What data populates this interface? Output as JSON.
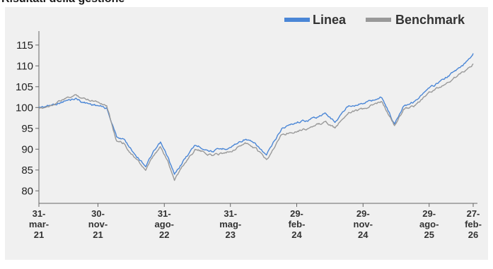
{
  "page": {
    "title": "Risultati della gestione"
  },
  "chart_data": {
    "type": "line",
    "title": "",
    "xlabel": "",
    "ylabel": "",
    "x_range": [
      "2021-03-31",
      "2026-02-27"
    ],
    "ylim": [
      77,
      117
    ],
    "yticks": [
      80,
      85,
      90,
      95,
      100,
      105,
      110,
      115
    ],
    "ytick_labels": [
      "80",
      "85",
      "90",
      "95",
      "100",
      "105",
      "110",
      "115"
    ],
    "xticks": [
      "2021-03-31",
      "2021-11-30",
      "2022-08-31",
      "2023-05-31",
      "2024-02-29",
      "2024-11-29",
      "2025-08-29",
      "2026-02-27"
    ],
    "xtick_labels": [
      [
        "31-",
        "mar-",
        "21"
      ],
      [
        "30-",
        "nov-",
        "21"
      ],
      [
        "31-",
        "ago-",
        "22"
      ],
      [
        "31-",
        "mag-",
        "23"
      ],
      [
        "29-",
        "feb-",
        "24"
      ],
      [
        "29-",
        "nov-",
        "24"
      ],
      [
        "29-",
        "ago-",
        "25"
      ],
      [
        "27-",
        "feb-",
        "26"
      ]
    ],
    "grid": false,
    "legend_position": "top-right",
    "series": [
      {
        "name": "Linea",
        "color": "#4a86d6",
        "points": [
          [
            "2021-03-31",
            100.0
          ],
          [
            "2021-05-15",
            100.5
          ],
          [
            "2021-07-15",
            101.5
          ],
          [
            "2021-09-01",
            102.2
          ],
          [
            "2021-10-01",
            101.2
          ],
          [
            "2021-11-30",
            100.5
          ],
          [
            "2022-01-05",
            99.8
          ],
          [
            "2022-02-15",
            93.0
          ],
          [
            "2022-03-15",
            92.5
          ],
          [
            "2022-04-30",
            89.0
          ],
          [
            "2022-06-15",
            86.0
          ],
          [
            "2022-07-15",
            89.0
          ],
          [
            "2022-08-15",
            91.5
          ],
          [
            "2022-09-15",
            88.0
          ],
          [
            "2022-10-12",
            83.8
          ],
          [
            "2022-11-15",
            87.0
          ],
          [
            "2023-01-05",
            91.0
          ],
          [
            "2023-03-15",
            89.5
          ],
          [
            "2023-05-31",
            90.5
          ],
          [
            "2023-07-31",
            92.5
          ],
          [
            "2023-09-15",
            91.0
          ],
          [
            "2023-10-27",
            88.5
          ],
          [
            "2023-12-29",
            95.0
          ],
          [
            "2024-02-29",
            96.5
          ],
          [
            "2024-04-15",
            97.0
          ],
          [
            "2024-06-28",
            98.5
          ],
          [
            "2024-08-05",
            96.5
          ],
          [
            "2024-09-30",
            100.5
          ],
          [
            "2024-11-29",
            101.0
          ],
          [
            "2025-02-15",
            102.5
          ],
          [
            "2025-04-08",
            96.0
          ],
          [
            "2025-05-15",
            100.5
          ],
          [
            "2025-06-30",
            101.5
          ],
          [
            "2025-08-29",
            104.5
          ],
          [
            "2025-11-01",
            107.0
          ],
          [
            "2026-01-15",
            110.0
          ],
          [
            "2026-02-27",
            113.0
          ]
        ]
      },
      {
        "name": "Benchmark",
        "color": "#999999",
        "points": [
          [
            "2021-03-31",
            99.5
          ],
          [
            "2021-05-15",
            100.5
          ],
          [
            "2021-07-15",
            102.0
          ],
          [
            "2021-09-01",
            103.0
          ],
          [
            "2021-10-01",
            102.2
          ],
          [
            "2021-11-30",
            101.5
          ],
          [
            "2022-01-05",
            100.5
          ],
          [
            "2022-02-15",
            92.0
          ],
          [
            "2022-03-15",
            91.5
          ],
          [
            "2022-04-30",
            88.0
          ],
          [
            "2022-06-15",
            85.0
          ],
          [
            "2022-07-15",
            88.0
          ],
          [
            "2022-08-15",
            90.5
          ],
          [
            "2022-09-15",
            87.0
          ],
          [
            "2022-10-12",
            82.8
          ],
          [
            "2022-11-15",
            86.0
          ],
          [
            "2023-01-05",
            90.0
          ],
          [
            "2023-03-15",
            88.5
          ],
          [
            "2023-05-31",
            89.5
          ],
          [
            "2023-07-31",
            91.5
          ],
          [
            "2023-09-15",
            90.0
          ],
          [
            "2023-10-27",
            87.5
          ],
          [
            "2023-12-29",
            93.5
          ],
          [
            "2024-02-29",
            94.5
          ],
          [
            "2024-04-15",
            95.0
          ],
          [
            "2024-06-28",
            96.5
          ],
          [
            "2024-08-05",
            95.0
          ],
          [
            "2024-09-30",
            99.0
          ],
          [
            "2024-11-29",
            99.5
          ],
          [
            "2025-02-15",
            101.5
          ],
          [
            "2025-04-08",
            95.5
          ],
          [
            "2025-05-15",
            99.5
          ],
          [
            "2025-06-30",
            100.5
          ],
          [
            "2025-08-29",
            103.5
          ],
          [
            "2025-11-01",
            105.5
          ],
          [
            "2026-01-15",
            108.5
          ],
          [
            "2026-02-27",
            110.5
          ]
        ]
      }
    ]
  }
}
